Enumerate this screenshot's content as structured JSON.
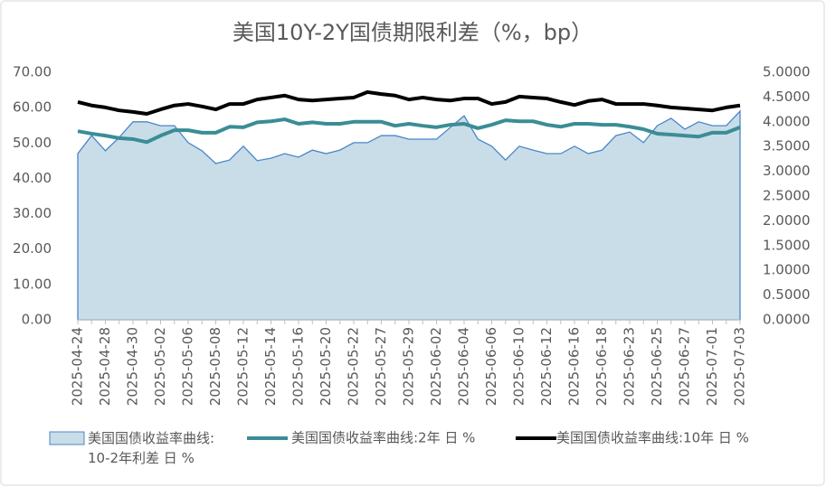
{
  "chart_data": {
    "type": "area-line",
    "title": "美国10Y-2Y国债期限利差（%，bp）",
    "categories": [
      "2025-04-24",
      null,
      "2025-04-28",
      null,
      "2025-04-30",
      null,
      "2025-05-02",
      null,
      "2025-05-06",
      null,
      "2025-05-08",
      null,
      "2025-05-12",
      null,
      "2025-05-14",
      null,
      "2025-05-16",
      null,
      "2025-05-20",
      null,
      "2025-05-22",
      null,
      "2025-05-27",
      null,
      "2025-05-29",
      null,
      "2025-06-02",
      null,
      "2025-06-04",
      null,
      "2025-06-06",
      null,
      "2025-06-10",
      null,
      "2025-06-12",
      null,
      "2025-06-16",
      null,
      "2025-06-18",
      null,
      "2025-06-23",
      null,
      "2025-06-25",
      null,
      "2025-06-27",
      null,
      "2025-07-01",
      null,
      "2025-07-03"
    ],
    "series": [
      {
        "name": "美国国债收益率曲线:10-2年利差 日 %",
        "type": "area",
        "axis": "y",
        "color": "#4a86c8",
        "fill": "#c9dde8",
        "values": [
          47.0,
          52.1,
          47.8,
          51.6,
          56.0,
          56.0,
          54.9,
          54.9,
          50.1,
          47.8,
          44.2,
          45.2,
          49.1,
          45.0,
          45.7,
          47.0,
          46.0,
          48.0,
          47.0,
          48.0,
          50.1,
          50.1,
          52.1,
          52.1,
          51.1,
          51.1,
          51.1,
          54.4,
          57.7,
          51.1,
          49.1,
          45.2,
          49.1,
          48.0,
          47.0,
          47.0,
          49.1,
          47.0,
          48.0,
          52.1,
          53.1,
          50.1,
          54.9,
          57.0,
          53.9,
          56.0,
          54.9,
          54.9,
          59.0
        ]
      },
      {
        "name": "美国国债收益率曲线:2年 日 %",
        "type": "line",
        "axis": "y2",
        "color": "#3a8d96",
        "values": [
          3.81,
          3.76,
          3.72,
          3.67,
          3.65,
          3.59,
          3.72,
          3.83,
          3.83,
          3.78,
          3.78,
          3.9,
          3.89,
          3.99,
          4.01,
          4.05,
          3.96,
          3.99,
          3.96,
          3.96,
          4.0,
          4.0,
          4.0,
          3.92,
          3.96,
          3.92,
          3.89,
          3.94,
          3.96,
          3.87,
          3.94,
          4.03,
          4.01,
          4.01,
          3.94,
          3.9,
          3.96,
          3.96,
          3.94,
          3.94,
          3.9,
          3.85,
          3.76,
          3.74,
          3.72,
          3.7,
          3.78,
          3.78,
          3.89
        ]
      },
      {
        "name": "美国国债收益率曲线:10年 日 %",
        "type": "line",
        "axis": "y2",
        "color": "#000000",
        "values": [
          4.4,
          4.33,
          4.29,
          4.23,
          4.2,
          4.16,
          4.25,
          4.33,
          4.36,
          4.31,
          4.25,
          4.36,
          4.36,
          4.45,
          4.49,
          4.53,
          4.45,
          4.43,
          4.45,
          4.47,
          4.49,
          4.6,
          4.56,
          4.53,
          4.45,
          4.49,
          4.45,
          4.43,
          4.47,
          4.47,
          4.36,
          4.4,
          4.51,
          4.49,
          4.47,
          4.4,
          4.34,
          4.42,
          4.45,
          4.36,
          4.36,
          4.36,
          4.33,
          4.29,
          4.27,
          4.25,
          4.23,
          4.29,
          4.33
        ]
      }
    ],
    "ylim": [
      0,
      70
    ],
    "yticks": [
      {
        "value": 0,
        "label": "0.00"
      },
      {
        "value": 10,
        "label": "10.00"
      },
      {
        "value": 20,
        "label": "20.00"
      },
      {
        "value": 30,
        "label": "30.00"
      },
      {
        "value": 40,
        "label": "40.00"
      },
      {
        "value": 50,
        "label": "50.00"
      },
      {
        "value": 60,
        "label": "60.00"
      },
      {
        "value": 70,
        "label": "70.00"
      }
    ],
    "y2lim": [
      0,
      5
    ],
    "y2ticks": [
      {
        "value": 0,
        "label": "0.0000"
      },
      {
        "value": 0.5,
        "label": "0.5000"
      },
      {
        "value": 1,
        "label": "1.0000"
      },
      {
        "value": 1.5,
        "label": "1.5000"
      },
      {
        "value": 2,
        "label": "2.0000"
      },
      {
        "value": 2.5,
        "label": "2.5000"
      },
      {
        "value": 3,
        "label": "3.0000"
      },
      {
        "value": 3.5,
        "label": "3.5000"
      },
      {
        "value": 4,
        "label": "4.0000"
      },
      {
        "value": 4.5,
        "label": "4.5000"
      },
      {
        "value": 5,
        "label": "5.0000"
      }
    ],
    "grid": false,
    "legend": "bottom"
  }
}
